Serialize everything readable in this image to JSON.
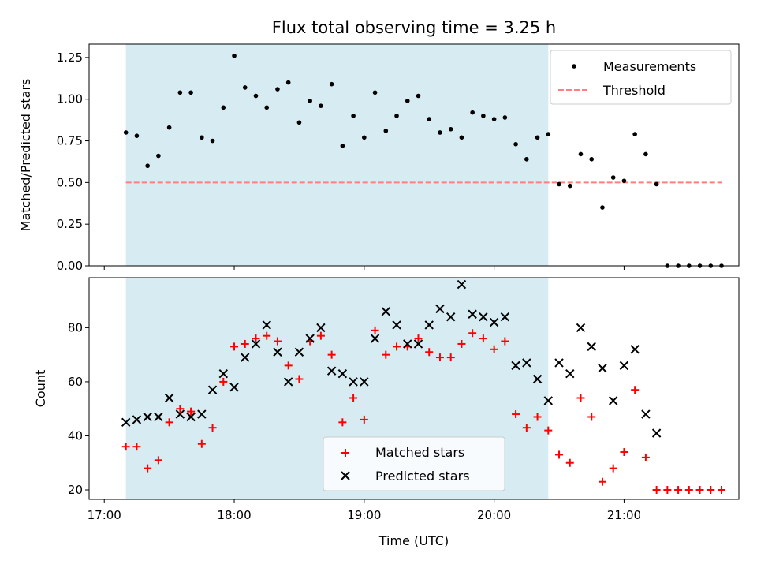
{
  "chart_data": {
    "title": "Flux total observing time = 3.25 h",
    "xlabel": "Time (UTC)",
    "x_ticks": [
      "17:00",
      "18:00",
      "19:00",
      "20:00",
      "21:00"
    ],
    "shaded_interval": [
      "17:10",
      "20:25"
    ],
    "colors": {
      "shade": "#add8e6",
      "measurements": "#000000",
      "threshold": "#ff7f7f",
      "matched": "#ff0000",
      "predicted": "#000000"
    },
    "x_times": [
      "17:10",
      "17:15",
      "17:20",
      "17:25",
      "17:30",
      "17:35",
      "17:40",
      "17:45",
      "17:50",
      "17:55",
      "18:00",
      "18:05",
      "18:10",
      "18:15",
      "18:20",
      "18:25",
      "18:30",
      "18:35",
      "18:40",
      "18:45",
      "18:50",
      "18:55",
      "19:00",
      "19:05",
      "19:10",
      "19:15",
      "19:20",
      "19:25",
      "19:30",
      "19:35",
      "19:40",
      "19:45",
      "19:50",
      "19:55",
      "20:00",
      "20:05",
      "20:10",
      "20:15",
      "20:20",
      "20:25",
      "20:30",
      "20:35",
      "20:40",
      "20:45",
      "20:50",
      "20:55",
      "21:00",
      "21:05",
      "21:10",
      "21:15",
      "21:20",
      "21:25",
      "21:30",
      "21:35",
      "21:40",
      "21:45"
    ],
    "panels": [
      {
        "type": "scatter",
        "ylabel": "Matched/Predicted stars",
        "ylim": [
          0,
          1.33
        ],
        "y_ticks": [
          "0.00",
          "0.25",
          "0.50",
          "0.75",
          "1.00",
          "1.25"
        ],
        "legend": {
          "position": "top-right",
          "entries": [
            "Measurements",
            "Threshold"
          ]
        },
        "threshold": {
          "name": "Threshold",
          "value": 0.5,
          "x_range": [
            "17:10",
            "21:45"
          ]
        },
        "series": [
          {
            "name": "Measurements",
            "values": [
              0.8,
              0.78,
              0.6,
              0.66,
              0.83,
              1.04,
              1.04,
              0.77,
              0.75,
              0.95,
              1.26,
              1.07,
              1.02,
              0.95,
              1.06,
              1.1,
              0.86,
              0.99,
              0.96,
              1.09,
              0.72,
              0.9,
              0.77,
              1.04,
              0.81,
              0.9,
              0.99,
              1.02,
              0.88,
              0.8,
              0.82,
              0.77,
              0.92,
              0.9,
              0.88,
              0.89,
              0.73,
              0.64,
              0.77,
              0.79,
              0.49,
              0.48,
              0.67,
              0.64,
              0.35,
              0.53,
              0.51,
              0.79,
              0.67,
              0.49,
              0.0,
              0.0,
              0.0,
              0.0,
              0.0,
              0.0
            ]
          }
        ]
      },
      {
        "type": "scatter",
        "ylabel": "Count",
        "ylim": [
          16.5,
          98.5
        ],
        "y_ticks": [
          "20",
          "40",
          "60",
          "80"
        ],
        "legend": {
          "position": "lower-center",
          "entries": [
            "Matched stars",
            "Predicted stars"
          ]
        },
        "series": [
          {
            "name": "Matched stars",
            "marker": "plus",
            "values": [
              36,
              36,
              28,
              31,
              45,
              50,
              49,
              37,
              43,
              60,
              73,
              74,
              76,
              77,
              75,
              66,
              61,
              75,
              77,
              70,
              45,
              54,
              46,
              79,
              70,
              73,
              73,
              76,
              71,
              69,
              69,
              74,
              78,
              76,
              72,
              75,
              48,
              43,
              47,
              42,
              33,
              30,
              54,
              47,
              23,
              28,
              34,
              57,
              32,
              20,
              20,
              20,
              20,
              20,
              20,
              20
            ]
          },
          {
            "name": "Predicted stars",
            "marker": "x",
            "values": [
              45,
              46,
              47,
              47,
              54,
              48,
              47,
              48,
              57,
              63,
              58,
              69,
              74,
              81,
              71,
              60,
              71,
              76,
              80,
              64,
              63,
              60,
              60,
              76,
              86,
              81,
              74,
              74,
              81,
              87,
              84,
              96,
              85,
              84,
              82,
              84,
              66,
              67,
              61,
              53,
              67,
              63,
              80,
              73,
              65,
              53,
              66,
              72,
              48,
              41,
              null,
              null,
              null,
              null,
              null,
              null
            ]
          }
        ]
      }
    ]
  }
}
